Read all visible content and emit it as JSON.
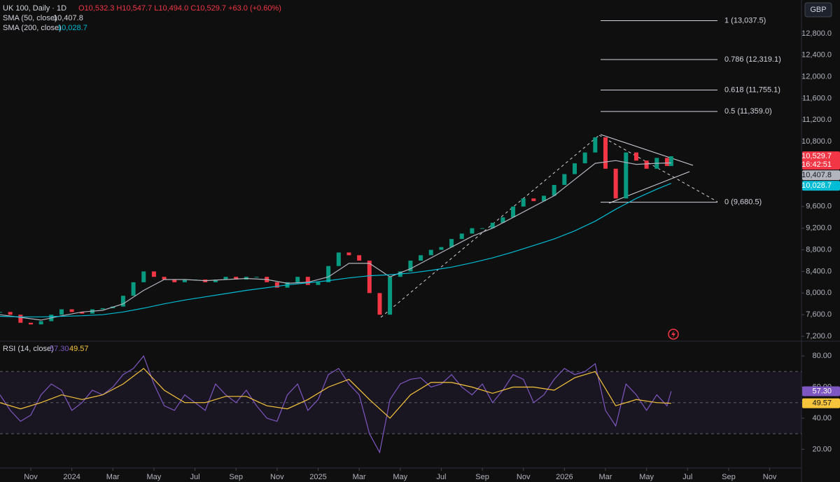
{
  "chart_data": [
    {
      "type": "candlestick",
      "title": "UK 100, Daily · 1D",
      "ohlc_label": "O10,532.3 H10,547.7 L10,494.0 C10,529.7 +63.0 (+0.60%)",
      "currency": "GBP",
      "countdown": "16:42:51",
      "xlim": [
        -1.5,
        37.55
      ],
      "ylim": [
        7110,
        13420
      ],
      "yticks": [
        {
          "value": 7200,
          "label": "7,200.0"
        },
        {
          "value": 7600,
          "label": "7,600.0"
        },
        {
          "value": 8000,
          "label": "8,000.0"
        },
        {
          "value": 8400,
          "label": "8,400.0"
        },
        {
          "value": 8800,
          "label": "8,800.0"
        },
        {
          "value": 9200,
          "label": "9,200.0"
        },
        {
          "value": 9600,
          "label": "9,600.0"
        },
        {
          "value": 10000,
          "label": "10,000.0"
        },
        {
          "value": 10400,
          "label": "10,400.0"
        },
        {
          "value": 10800,
          "label": "10,800.0"
        },
        {
          "value": 11200,
          "label": "11,200.0"
        },
        {
          "value": 11600,
          "label": "11,600.0"
        },
        {
          "value": 12000,
          "label": "12,000.0"
        },
        {
          "value": 12400,
          "label": "12,400.0"
        },
        {
          "value": 12800,
          "label": "12,800.0"
        }
      ],
      "grid": false,
      "up_color": "#089981",
      "down_color": "#f23645",
      "series": [
        {
          "name": "UK 100",
          "color": "#f23645",
          "last_label": "10,529.7",
          "x": [
            -1.5,
            -1,
            -0.5,
            0,
            0.5,
            1,
            1.5,
            2,
            2.5,
            3,
            3.5,
            4,
            4.5,
            5,
            5.5,
            6,
            6.5,
            7,
            7.5,
            8,
            8.5,
            9,
            9.5,
            10,
            10.5,
            11,
            11.5,
            12,
            12.5,
            13,
            13.5,
            14,
            14.5,
            15,
            15.5,
            16,
            16.5,
            17,
            17.5,
            18,
            18.5,
            19,
            19.5,
            20,
            20.5,
            21,
            21.5,
            22,
            22.5,
            23,
            23.5,
            24,
            24.5,
            25,
            25.5,
            26,
            26.5,
            27,
            27.5,
            28,
            28.5,
            29,
            29.5,
            30,
            30.5,
            31,
            31.2
          ],
          "values": [
            7650,
            7600,
            7450,
            7420,
            7480,
            7600,
            7700,
            7650,
            7620,
            7700,
            7720,
            7750,
            7950,
            8200,
            8400,
            8300,
            8250,
            8200,
            8250,
            8250,
            8200,
            8250,
            8300,
            8250,
            8300,
            8300,
            8200,
            8100,
            8200,
            8300,
            8150,
            8200,
            8500,
            8750,
            8700,
            8600,
            8000,
            7600,
            8300,
            8400,
            8600,
            8700,
            8800,
            8850,
            9000,
            9100,
            9200,
            9200,
            9300,
            9400,
            9600,
            9750,
            9700,
            9800,
            10000,
            10200,
            10400,
            10600,
            10880,
            10300,
            9750,
            10600,
            10450,
            10300,
            10500,
            10350,
            10529.7
          ]
        },
        {
          "name": "SMA (50, close)",
          "color": "#b2b5be",
          "last_label": "10,407.8",
          "x": [
            -1.5,
            -0.5,
            0.5,
            1.5,
            2.5,
            3.5,
            4.5,
            5.5,
            6.5,
            7.5,
            8.5,
            9.5,
            10.5,
            11.5,
            12.5,
            13.5,
            14.5,
            15.5,
            16.5,
            17.5,
            18.5,
            19.5,
            20.5,
            21.5,
            22.5,
            23.5,
            24.5,
            25.5,
            26.5,
            27.5,
            28.5,
            29.5,
            30.5,
            31.2
          ],
          "values": [
            7600,
            7550,
            7500,
            7580,
            7650,
            7680,
            7800,
            8050,
            8250,
            8250,
            8230,
            8250,
            8270,
            8250,
            8180,
            8200,
            8300,
            8550,
            8550,
            8300,
            8450,
            8650,
            8850,
            9050,
            9200,
            9400,
            9600,
            9800,
            10100,
            10400,
            10450,
            10380,
            10400,
            10407.8
          ]
        },
        {
          "name": "SMA (200, close)",
          "color": "#00bcd4",
          "last_label": "10,028.7",
          "x": [
            -1.5,
            -0.5,
            0.5,
            1.5,
            2.5,
            3.5,
            4.5,
            5.5,
            6.5,
            7.5,
            8.5,
            9.5,
            10.5,
            11.5,
            12.5,
            13.5,
            14.5,
            15.5,
            16.5,
            17.5,
            18.5,
            19.5,
            20.5,
            21.5,
            22.5,
            23.5,
            24.5,
            25.5,
            26.5,
            27.5,
            28.5,
            29.5,
            30.5,
            31.2
          ],
          "values": [
            7570,
            7560,
            7560,
            7570,
            7580,
            7600,
            7650,
            7720,
            7800,
            7870,
            7930,
            7990,
            8050,
            8100,
            8150,
            8190,
            8230,
            8280,
            8320,
            8340,
            8370,
            8420,
            8480,
            8560,
            8650,
            8760,
            8880,
            9000,
            9150,
            9330,
            9550,
            9750,
            9920,
            10028.7
          ]
        }
      ],
      "fib_levels": [
        {
          "value": 13037.5,
          "label": "1 (13,037.5)"
        },
        {
          "value": 12319.1,
          "label": "0.786 (12,319.1)"
        },
        {
          "value": 11755.1,
          "label": "0.618 (11,755.1)"
        },
        {
          "value": 11359.0,
          "label": "0.5 (11,359.0)"
        },
        {
          "value": 9680.5,
          "label": "0 (9,680.5)"
        }
      ]
    },
    {
      "type": "line",
      "title": "RSI (14, close)",
      "xlim": [
        -1.5,
        37.55
      ],
      "xticks": [
        {
          "value": 0,
          "label": "Nov"
        },
        {
          "value": 2,
          "label": "2024"
        },
        {
          "value": 4,
          "label": "Mar"
        },
        {
          "value": 6,
          "label": "May"
        },
        {
          "value": 8,
          "label": "Jul"
        },
        {
          "value": 10,
          "label": "Sep"
        },
        {
          "value": 12,
          "label": "Nov"
        },
        {
          "value": 14,
          "label": "2025"
        },
        {
          "value": 16,
          "label": "Mar"
        },
        {
          "value": 18,
          "label": "May"
        },
        {
          "value": 20,
          "label": "Jul"
        },
        {
          "value": 22,
          "label": "Sep"
        },
        {
          "value": 24,
          "label": "Nov"
        },
        {
          "value": 26,
          "label": "2026"
        },
        {
          "value": 28,
          "label": "Mar"
        },
        {
          "value": 30,
          "label": "May"
        },
        {
          "value": 32,
          "label": "Jul"
        },
        {
          "value": 34,
          "label": "Sep"
        },
        {
          "value": 36,
          "label": "Nov"
        }
      ],
      "ylim": [
        8,
        89.5
      ],
      "yticks": [
        {
          "value": 20,
          "label": "20.00"
        },
        {
          "value": 40,
          "label": "40.00"
        },
        {
          "value": 60,
          "label": "60.00"
        },
        {
          "value": 80,
          "label": "80.00"
        }
      ],
      "levels": [
        70,
        50,
        30
      ],
      "series": [
        {
          "color": "#7e57c2",
          "last_label": "57.30",
          "x": [
            -1.5,
            -1,
            -0.5,
            0,
            0.5,
            1,
            1.5,
            2,
            2.5,
            3,
            3.5,
            4,
            4.5,
            5,
            5.5,
            6,
            6.5,
            7,
            7.5,
            8,
            8.5,
            9,
            9.5,
            10,
            10.5,
            11,
            11.5,
            12,
            12.5,
            13,
            13.5,
            14,
            14.5,
            15,
            15.5,
            16,
            16.5,
            17,
            17.5,
            18,
            18.5,
            19,
            19.5,
            20,
            20.5,
            21,
            21.5,
            22,
            22.5,
            23,
            23.5,
            24,
            24.5,
            25,
            25.5,
            26,
            26.5,
            27,
            27.5,
            28,
            28.5,
            29,
            29.5,
            30,
            30.5,
            31,
            31.2
          ],
          "values": [
            55,
            45,
            38,
            42,
            55,
            62,
            58,
            45,
            50,
            58,
            55,
            60,
            68,
            72,
            80,
            62,
            48,
            45,
            55,
            50,
            45,
            62,
            55,
            50,
            58,
            48,
            40,
            38,
            55,
            62,
            45,
            52,
            68,
            72,
            62,
            55,
            30,
            18,
            52,
            62,
            65,
            66,
            60,
            62,
            68,
            60,
            55,
            62,
            50,
            58,
            68,
            65,
            50,
            55,
            65,
            72,
            68,
            70,
            75,
            45,
            35,
            62,
            55,
            45,
            55,
            48,
            57.3
          ]
        },
        {
          "color": "#f7c53b",
          "last_label": "49.57",
          "x": [
            -1.5,
            -0.5,
            0.5,
            1.5,
            2.5,
            3.5,
            4.5,
            5.5,
            6.5,
            7.5,
            8.5,
            9.5,
            10.5,
            11.5,
            12.5,
            13.5,
            14.5,
            15.5,
            16.5,
            17.5,
            18.5,
            19.5,
            20.5,
            21.5,
            22.5,
            23.5,
            24.5,
            25.5,
            26.5,
            27.5,
            28.5,
            29.5,
            30.5,
            31.2
          ],
          "values": [
            50,
            46,
            50,
            55,
            52,
            55,
            62,
            72,
            58,
            50,
            50,
            54,
            54,
            48,
            46,
            52,
            60,
            65,
            52,
            40,
            55,
            63,
            63,
            60,
            56,
            60,
            60,
            58,
            66,
            70,
            48,
            52,
            50,
            49.57
          ]
        }
      ]
    }
  ]
}
